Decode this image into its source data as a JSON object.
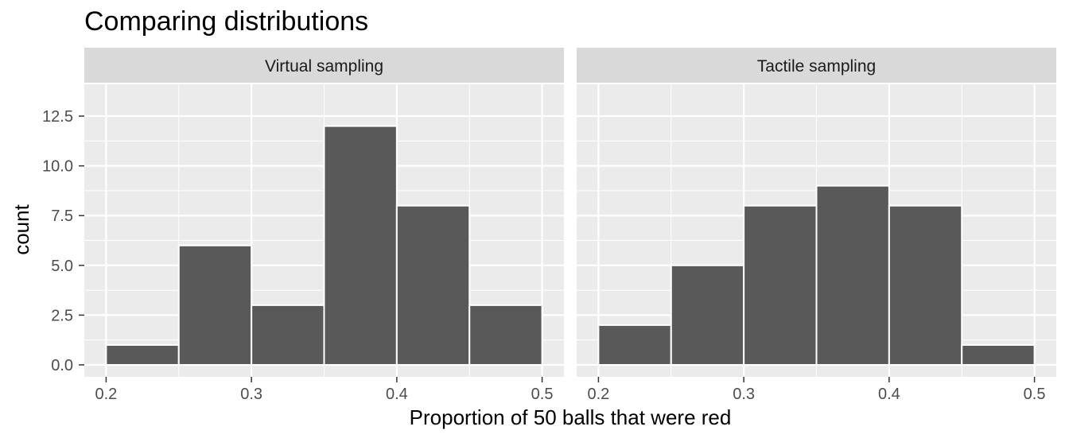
{
  "chart_data": {
    "type": "bar",
    "title": "Comparing distributions",
    "xlabel": "Proportion of 50 balls that were red",
    "ylabel": "count",
    "xlim": [
      0.185,
      0.515
    ],
    "ylim": [
      -0.6,
      14.1
    ],
    "x_ticks": [
      "0.2",
      "0.3",
      "0.4",
      "0.5"
    ],
    "x_tick_values": [
      0.2,
      0.3,
      0.4,
      0.5
    ],
    "y_ticks": [
      "0.0",
      "2.5",
      "5.0",
      "7.5",
      "10.0",
      "12.5"
    ],
    "y_tick_values": [
      0,
      2.5,
      5,
      7.5,
      10,
      12.5
    ],
    "bin_width": 0.05,
    "grid": true,
    "colors": {
      "bar_fill": "#595959",
      "bar_stroke": "#ffffff",
      "panel_bg": "#ebebeb",
      "strip_bg": "#d9d9d9",
      "grid": "#ffffff"
    },
    "facets": [
      {
        "strip_label": "Virtual sampling",
        "bins": [
          {
            "start": 0.2,
            "end": 0.25,
            "count": 1
          },
          {
            "start": 0.25,
            "end": 0.3,
            "count": 6
          },
          {
            "start": 0.3,
            "end": 0.35,
            "count": 3
          },
          {
            "start": 0.35,
            "end": 0.4,
            "count": 12
          },
          {
            "start": 0.4,
            "end": 0.45,
            "count": 8
          },
          {
            "start": 0.45,
            "end": 0.5,
            "count": 3
          }
        ]
      },
      {
        "strip_label": "Tactile sampling",
        "bins": [
          {
            "start": 0.2,
            "end": 0.25,
            "count": 2
          },
          {
            "start": 0.25,
            "end": 0.3,
            "count": 5
          },
          {
            "start": 0.3,
            "end": 0.35,
            "count": 8
          },
          {
            "start": 0.35,
            "end": 0.4,
            "count": 9
          },
          {
            "start": 0.4,
            "end": 0.45,
            "count": 8
          },
          {
            "start": 0.45,
            "end": 0.5,
            "count": 1
          }
        ]
      }
    ]
  }
}
